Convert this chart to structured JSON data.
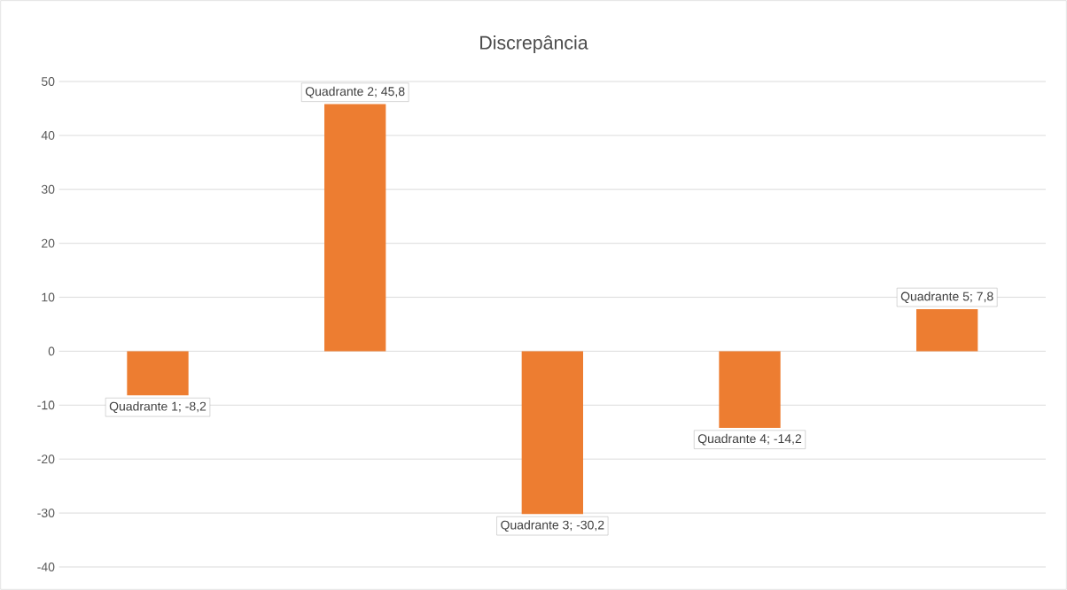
{
  "chart_data": {
    "type": "bar",
    "title": "Discrepância",
    "categories": [
      null,
      null,
      null,
      null,
      null
    ],
    "values": [
      -8.2,
      45.8,
      -30.2,
      -14.2,
      7.8
    ],
    "value_labels": [
      "Quadrante 1; -8,2",
      "Quadrante 2; 45,8",
      "Quadrante 3; -30,2",
      "Quadrante 4; -14,2",
      "Quadrante 5; 7,8"
    ],
    "color": "#ed7d31",
    "ylim": [
      -40,
      50
    ],
    "yticks": [
      -40,
      -30,
      -20,
      -10,
      0,
      10,
      20,
      30,
      40,
      50
    ],
    "grid": "y"
  }
}
